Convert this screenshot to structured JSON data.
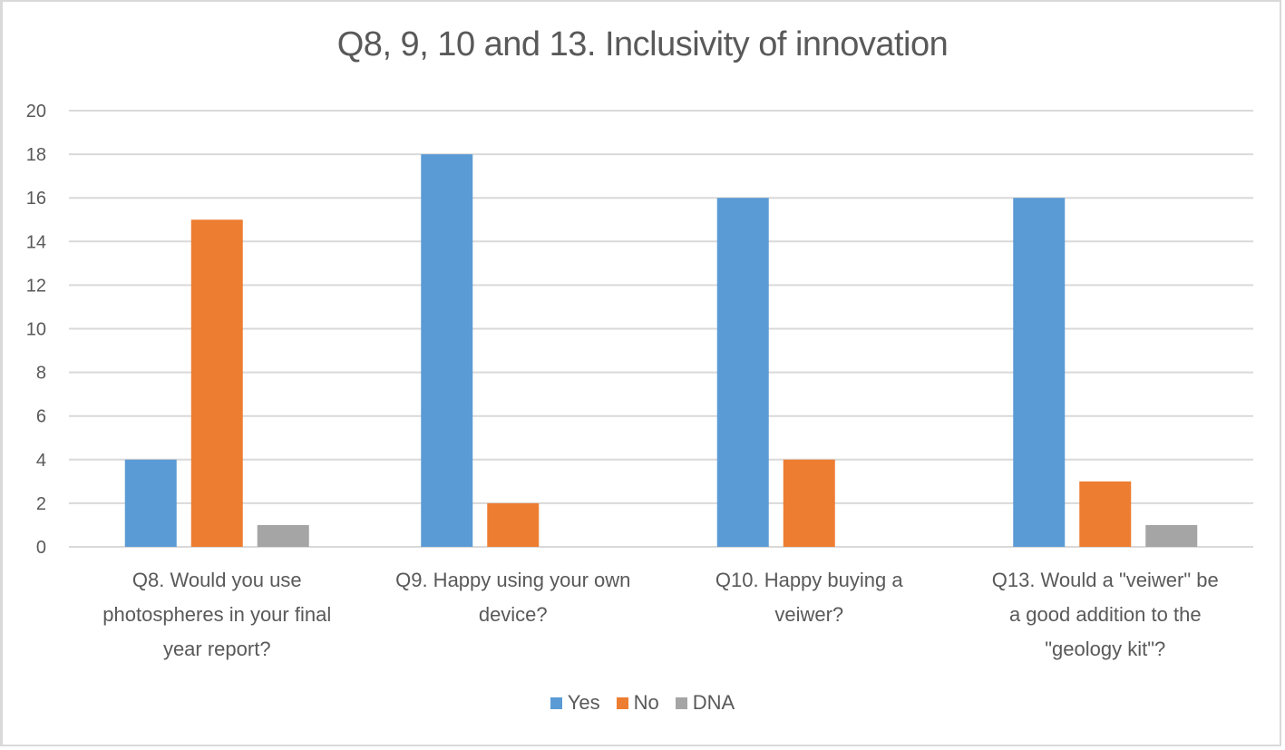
{
  "chart_data": {
    "type": "bar",
    "title": "Q8, 9, 10 and 13. Inclusivity of innovation",
    "xlabel": "",
    "ylabel": "",
    "ylim": [
      0,
      20
    ],
    "yticks": [
      0,
      2,
      4,
      6,
      8,
      10,
      12,
      14,
      16,
      18,
      20
    ],
    "grid": true,
    "legend_position": "bottom",
    "categories": [
      "Q8. Would you use photospheres in your final year report?",
      "Q9. Happy using your own device?",
      "Q10. Happy buying a veiwer?",
      "Q13. Would a \"veiwer\" be a good addition to the \"geology kit\"?"
    ],
    "category_lines": [
      [
        "Q8. Would you use",
        "photospheres in your final",
        "year report?"
      ],
      [
        "Q9. Happy using your own",
        "device?"
      ],
      [
        "Q10. Happy buying a",
        "veiwer?"
      ],
      [
        "Q13. Would a \"veiwer\" be",
        "a good addition to the",
        "\"geology kit\"?"
      ]
    ],
    "series": [
      {
        "name": "Yes",
        "color": "#5b9bd5",
        "values": [
          4,
          18,
          16,
          16
        ]
      },
      {
        "name": "No",
        "color": "#ed7d31",
        "values": [
          15,
          2,
          4,
          3
        ]
      },
      {
        "name": "DNA",
        "color": "#a5a5a5",
        "values": [
          1,
          0,
          0,
          1
        ]
      }
    ]
  }
}
